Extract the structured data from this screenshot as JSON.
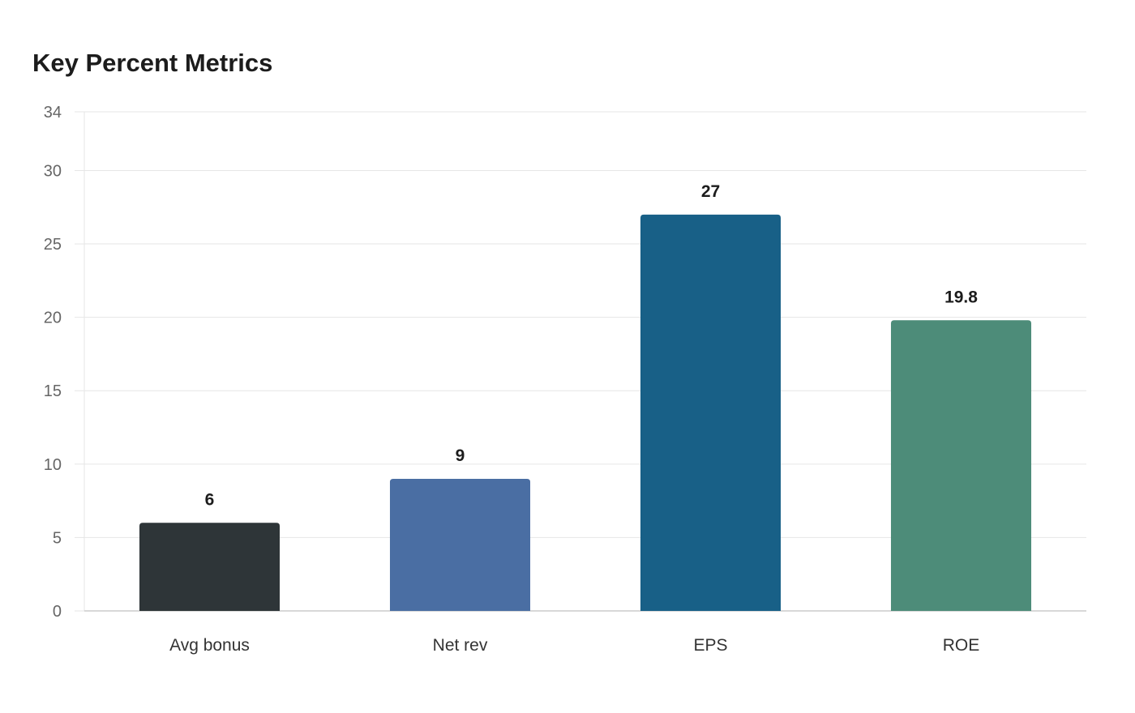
{
  "chart_data": {
    "type": "bar",
    "title": "Key Percent Metrics",
    "categories": [
      "Avg bonus",
      "Net rev",
      "EPS",
      "ROE"
    ],
    "values": [
      6,
      9,
      27,
      19.8
    ],
    "value_labels": [
      "6",
      "9",
      "27",
      "19.8"
    ],
    "colors": [
      "#2e3538",
      "#4a6ea3",
      "#186087",
      "#4d8c79"
    ],
    "ylim": [
      0,
      34
    ],
    "yticks": [
      0,
      5,
      10,
      15,
      20,
      25,
      30,
      34
    ],
    "xlabel": "",
    "ylabel": "",
    "grid": true,
    "legend": "none"
  }
}
